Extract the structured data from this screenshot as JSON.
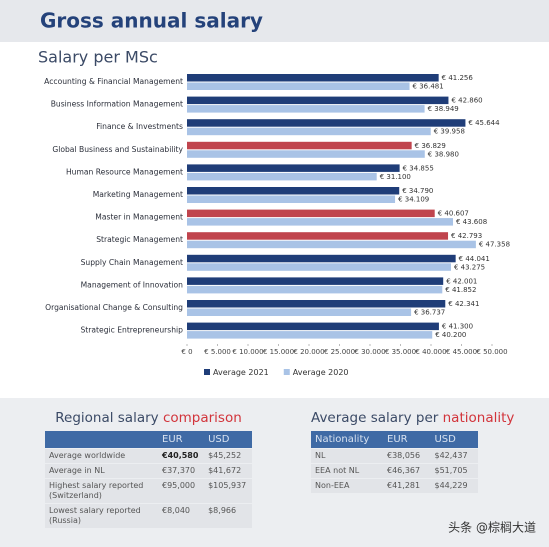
{
  "title": "Gross annual salary",
  "chart_data": {
    "type": "hbar",
    "title": "Salary per MSc",
    "categories": [
      "Accounting & Financial Management",
      "Business Information Management",
      "Finance & Investments",
      "Global Business and Sustainability",
      "Human Resource Management",
      "Marketing Management",
      "Master in Management",
      "Strategic Management",
      "Supply Chain Management",
      "Management of Innovation",
      "Organisational Change & Consulting",
      "Strategic Entrepreneurship"
    ],
    "series": [
      {
        "name": "Average 2021",
        "color": "#1f3d78",
        "colors": [
          "#1f3d78",
          "#1f3d78",
          "#1f3d78",
          "#c0444d",
          "#1f3d78",
          "#1f3d78",
          "#c0444d",
          "#c0444d",
          "#1f3d78",
          "#1f3d78",
          "#1f3d78",
          "#1f3d78"
        ],
        "values": [
          41256,
          42860,
          45644,
          36829,
          34855,
          34790,
          40607,
          42793,
          44041,
          42001,
          42341,
          41300
        ],
        "value_labels": [
          "€ 41.256",
          "€ 42.860",
          "€ 45.644",
          "€ 36.829",
          "€ 34.855",
          "€ 34.790",
          "€ 40.607",
          "€ 42.793",
          "€ 44.041",
          "€ 42.001",
          "€ 42.341",
          "€ 41.300"
        ]
      },
      {
        "name": "Average 2020",
        "color": "#a9c3e6",
        "values": [
          36481,
          38949,
          39958,
          38980,
          31100,
          34109,
          43608,
          47358,
          43275,
          41852,
          36737,
          40200
        ],
        "value_labels": [
          "€ 36.481",
          "€ 38.949",
          "€ 39.958",
          "€ 38.980",
          "€ 31.100",
          "€ 34.109",
          "€ 43.608",
          "€ 47.358",
          "€ 43.275",
          "€ 41.852",
          "€ 36.737",
          "€ 40.200"
        ]
      }
    ],
    "xlim": [
      0,
      50000
    ],
    "xticks": [
      {
        "value": 0,
        "label": "€ 0"
      },
      {
        "value": 5000,
        "label": "€ 5.000"
      },
      {
        "value": 10000,
        "label": "€ 10.000"
      },
      {
        "value": 15000,
        "label": "€ 15.000"
      },
      {
        "value": 20000,
        "label": "€ 20.000"
      },
      {
        "value": 25000,
        "label": "€ 25.000"
      },
      {
        "value": 30000,
        "label": "€ 30.000"
      },
      {
        "value": 35000,
        "label": "€ 35.000"
      },
      {
        "value": 40000,
        "label": "€ 40.000"
      },
      {
        "value": 45000,
        "label": "€ 45.000"
      },
      {
        "value": 50000,
        "label": "€ 50.000"
      }
    ],
    "legend": "bottom"
  },
  "regional": {
    "title": [
      "Regional salary",
      "comparison"
    ],
    "header": [
      "EUR",
      "USD"
    ],
    "rows": [
      [
        "Average worldwide",
        "€40,580",
        "$45,252"
      ],
      [
        "Average in NL",
        "€37,370",
        "$41,672"
      ],
      [
        "Highest salary reported (Switzerland)",
        "€95,000",
        "$105,937"
      ],
      [
        "Lowest salary reported (Russia)",
        "€8,040",
        "$8,966"
      ]
    ]
  },
  "nationality": {
    "title": [
      "Average salary per",
      "nationality"
    ],
    "header": [
      "Nationality",
      "EUR",
      "USD"
    ],
    "rows": [
      [
        "NL",
        "€38,056",
        "$42,437"
      ],
      [
        "EEA not NL",
        "€46,367",
        "$51,705"
      ],
      [
        "Non-EEA",
        "€41,281",
        "$44,229"
      ]
    ]
  },
  "watermark": "头条 @棕榈大道"
}
